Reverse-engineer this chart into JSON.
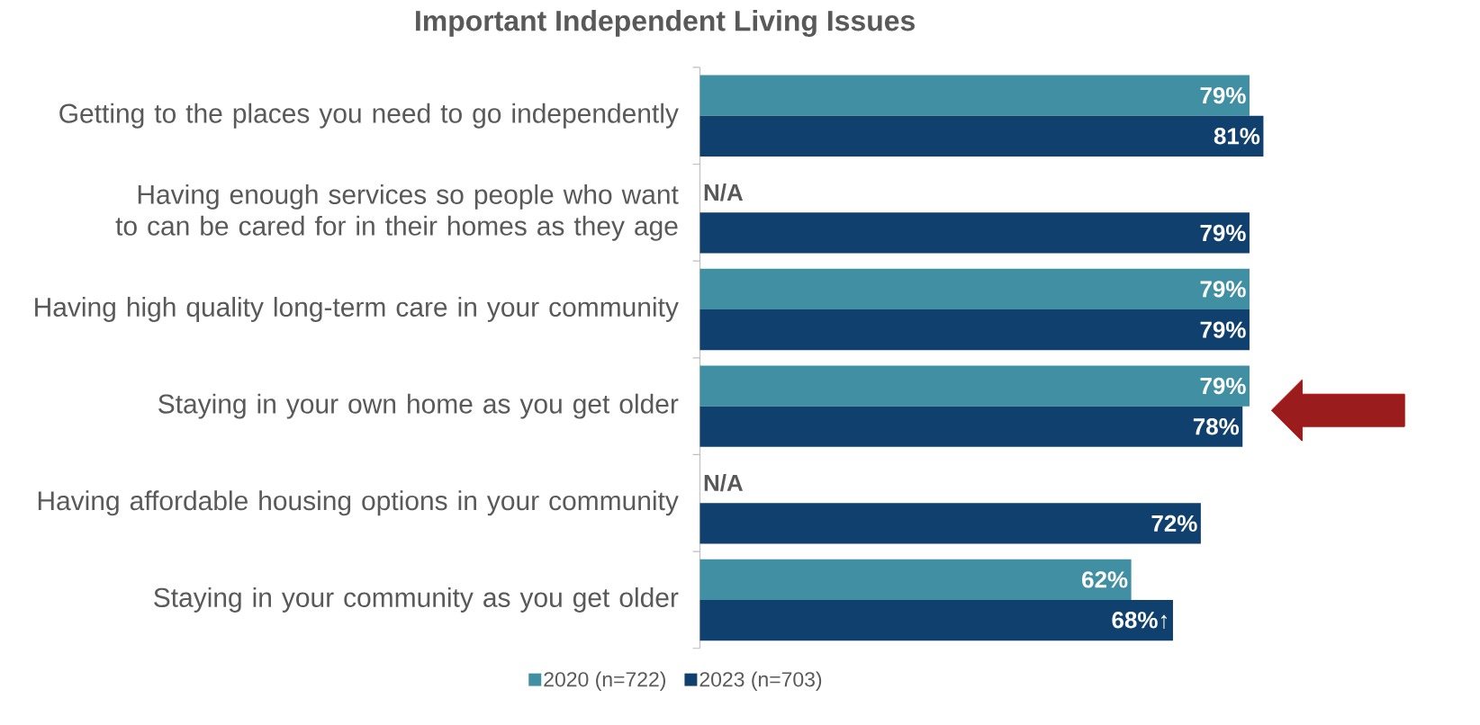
{
  "chart_data": {
    "type": "bar",
    "orientation": "horizontal",
    "title": "Important Independent Living Issues",
    "categories": [
      "Getting to the places you need to go independently",
      "Having enough services so people who want to can be cared for in their homes as they age",
      "Having high quality long-term care in your community",
      "Staying in your own home as you get older",
      "Having affordable housing options in your community",
      "Staying in your community as you get older"
    ],
    "tick_labels": "y",
    "legend": "bottom",
    "series": [
      {
        "name": "2020 (n=722)",
        "color": "#418fa3",
        "values": [
          79,
          null,
          79,
          79,
          null,
          62
        ],
        "value_labels": [
          "79%",
          "N/A",
          "79%",
          "79%",
          "N/A",
          "62%"
        ]
      },
      {
        "name": "2023 (n=703)",
        "color": "#10406e",
        "values": [
          81,
          79,
          79,
          78,
          72,
          68
        ],
        "value_labels": [
          "81%",
          "79%",
          "79%",
          "78%",
          "72%",
          "68%↑"
        ]
      }
    ]
  }
}
